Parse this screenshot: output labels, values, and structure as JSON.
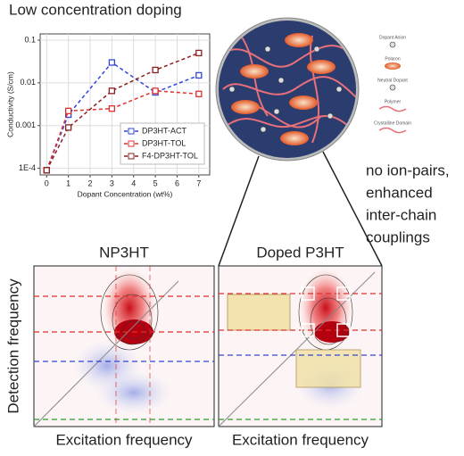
{
  "header": {
    "title": "Low concentration doping"
  },
  "chart_data": {
    "type": "line",
    "y_label": "Conductivity (S/cm)",
    "x_label": "Dopant Concentration (wt%)",
    "x": [
      0,
      1,
      3,
      5,
      7
    ],
    "series": [
      {
        "name": "DP3HT-ACT",
        "color": "#3146d6",
        "values": [
          9e-05,
          0.0018,
          0.03,
          0.006,
          0.015
        ]
      },
      {
        "name": "DP3HT-TOL",
        "color": "#e0312f",
        "values": [
          9e-05,
          0.0022,
          0.0025,
          0.0065,
          0.0055
        ]
      },
      {
        "name": "F4-DP3HT-TOL",
        "color": "#8a1f1f",
        "values": [
          9e-05,
          0.0009,
          0.0065,
          0.02,
          0.05
        ]
      }
    ],
    "xlim": [
      -0.3,
      7.5
    ],
    "ylim": [
      7e-05,
      0.14
    ],
    "xticks": [
      0,
      1,
      2,
      3,
      4,
      5,
      6,
      7
    ],
    "yticks": [
      {
        "value": 0.0001,
        "label": "1E-4"
      },
      0.001,
      0.01,
      0.1
    ],
    "log_y": true,
    "grid": true,
    "legend": "lower right"
  },
  "schematic": {
    "legend": [
      "Dopant Anion",
      "Polaron",
      "Neutral Dopant",
      "Polymer",
      "Crystalline Domain"
    ]
  },
  "annotation": {
    "lines": [
      "no ion-pairs,",
      "enhanced",
      "inter-chain",
      "couplings"
    ]
  },
  "panels": [
    {
      "title": "NP3HT",
      "x_label": "Excitation frequency",
      "y_label": "Detection frequency"
    },
    {
      "title": "Doped P3HT",
      "x_label": "Excitation frequency"
    }
  ]
}
